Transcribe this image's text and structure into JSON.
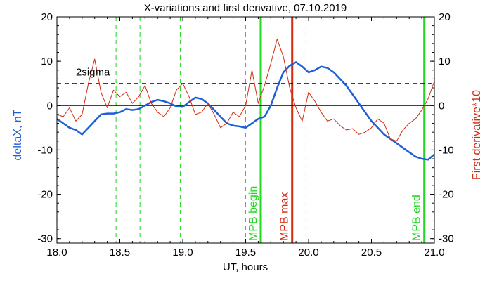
{
  "chart_data": {
    "type": "line",
    "title": "X-variations and first derivative, 07.10.2019",
    "xlabel": "UT, hours",
    "ylabel_left": "deltaX, nT",
    "ylabel_right": "First derivative*10",
    "xlim": [
      18.0,
      21.0
    ],
    "ylim_left": [
      -31,
      20
    ],
    "ylim_right": [
      -31,
      20
    ],
    "xticks": [
      18.0,
      18.5,
      19.0,
      19.5,
      20.0,
      20.5,
      21.0
    ],
    "xtick_labels": [
      "18.0",
      "18.5",
      "19.0",
      "19.5",
      "20.0",
      "20.5",
      "21.0"
    ],
    "yticks": [
      -30,
      -20,
      -10,
      0,
      10,
      20
    ],
    "ytick_labels": [
      "-30",
      "-20",
      "-10",
      "0",
      "10",
      "20"
    ],
    "colors": {
      "deltaX": "#1e5fd6",
      "derivative": "#d42a10",
      "green_markers": "#22d822",
      "red_marker": "#d42a10",
      "axis": "#000000"
    },
    "series": [
      {
        "name": "deltaX, nT",
        "color": "#1e5fd6",
        "x": [
          18.0,
          18.05,
          18.1,
          18.15,
          18.2,
          18.25,
          18.3,
          18.35,
          18.4,
          18.45,
          18.5,
          18.55,
          18.6,
          18.65,
          18.7,
          18.75,
          18.8,
          18.85,
          18.9,
          18.95,
          19.0,
          19.05,
          19.1,
          19.15,
          19.2,
          19.25,
          19.3,
          19.35,
          19.4,
          19.45,
          19.5,
          19.55,
          19.6,
          19.65,
          19.7,
          19.75,
          19.8,
          19.85,
          19.9,
          19.95,
          20.0,
          20.05,
          20.1,
          20.15,
          20.2,
          20.25,
          20.3,
          20.35,
          20.4,
          20.45,
          20.5,
          20.55,
          20.6,
          20.65,
          20.7,
          20.75,
          20.8,
          20.85,
          20.9,
          20.95,
          21.0
        ],
        "y": [
          -3,
          -4,
          -5,
          -5.5,
          -6.5,
          -5,
          -3.5,
          -2,
          -1.8,
          -1.8,
          -1.5,
          -0.8,
          -1,
          -0.8,
          0,
          0.8,
          1.3,
          1.0,
          0.5,
          -0.2,
          -0.3,
          0.8,
          1.8,
          1.5,
          0.5,
          -1,
          -2.5,
          -4,
          -4.5,
          -4.7,
          -5,
          -4,
          -3,
          -2.5,
          0,
          4,
          7.5,
          9,
          9.8,
          8.8,
          7.5,
          8,
          8.8,
          8.5,
          7.5,
          6,
          4.5,
          2.5,
          0.5,
          -1.5,
          -3.5,
          -5,
          -6.5,
          -7.5,
          -8.5,
          -9.5,
          -10.5,
          -11.5,
          -12,
          -12.2,
          -11
        ]
      },
      {
        "name": "First derivative*10",
        "color": "#d42a10",
        "x": [
          18.0,
          18.05,
          18.1,
          18.15,
          18.2,
          18.25,
          18.3,
          18.35,
          18.4,
          18.45,
          18.5,
          18.55,
          18.6,
          18.65,
          18.7,
          18.75,
          18.8,
          18.85,
          18.9,
          18.95,
          19.0,
          19.05,
          19.1,
          19.15,
          19.2,
          19.25,
          19.3,
          19.35,
          19.4,
          19.45,
          19.5,
          19.55,
          19.6,
          19.65,
          19.7,
          19.75,
          19.8,
          19.85,
          19.9,
          19.95,
          20.0,
          20.05,
          20.1,
          20.15,
          20.2,
          20.25,
          20.3,
          20.35,
          20.4,
          20.45,
          20.5,
          20.55,
          20.6,
          20.65,
          20.7,
          20.75,
          20.8,
          20.85,
          20.9,
          20.95,
          21.0
        ],
        "y": [
          -2,
          -2.5,
          -0.5,
          -3.5,
          -2,
          5,
          10.5,
          3,
          -0.5,
          3.5,
          2,
          3,
          0.5,
          2,
          4.5,
          0.5,
          -1.5,
          -2.5,
          -0.5,
          3.5,
          5,
          2,
          -2,
          -1.5,
          0.5,
          -2,
          -5,
          -4,
          -1.5,
          -2.5,
          0,
          8,
          0.5,
          4.5,
          9.5,
          15,
          11,
          4,
          -0.5,
          -3.5,
          3,
          1,
          -1.5,
          -3.5,
          -3,
          -4.5,
          -5.5,
          -5.2,
          -6.5,
          -6,
          -5,
          -3,
          -4,
          -7.5,
          -8,
          -5.5,
          -4,
          -3,
          -1,
          1.5,
          5.5
        ]
      }
    ],
    "threshold": {
      "label": "2sigma",
      "value": 5,
      "style": "dashed"
    },
    "zero_line": {
      "value": 0
    },
    "green_dashed_markers": [
      18.47,
      18.66,
      18.98,
      19.5,
      19.98
    ],
    "event_markers": [
      {
        "label": "MPB begin",
        "x": 19.62,
        "color": "#22d822"
      },
      {
        "label": "MPB max",
        "x": 19.87,
        "color": "#d42a10"
      },
      {
        "label": "MPB end",
        "x": 20.92,
        "color": "#22d822"
      }
    ],
    "grid": false,
    "legend": "none"
  }
}
